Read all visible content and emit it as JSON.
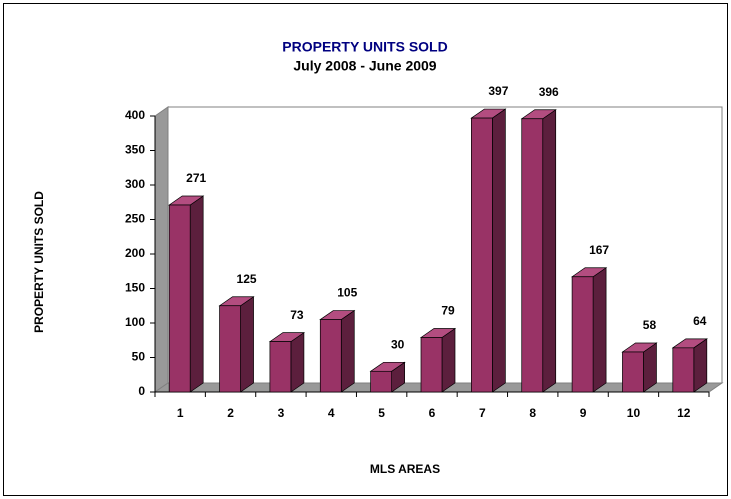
{
  "chart_data": {
    "type": "bar3d",
    "title": "PROPERTY UNITS SOLD",
    "subtitle": "July 2008 - June 2009",
    "y_label": "PROPERTY UNITS SOLD",
    "x_label": "MLS AREAS",
    "categories": [
      "1",
      "2",
      "3",
      "4",
      "5",
      "6",
      "7",
      "8",
      "9",
      "10",
      "12"
    ],
    "values": [
      271,
      125,
      73,
      105,
      30,
      79,
      397,
      396,
      167,
      58,
      64
    ],
    "color": "#993366",
    "ylim": [
      0,
      400
    ],
    "yticks": [
      0,
      50,
      100,
      150,
      200,
      250,
      300,
      350,
      400
    ]
  }
}
